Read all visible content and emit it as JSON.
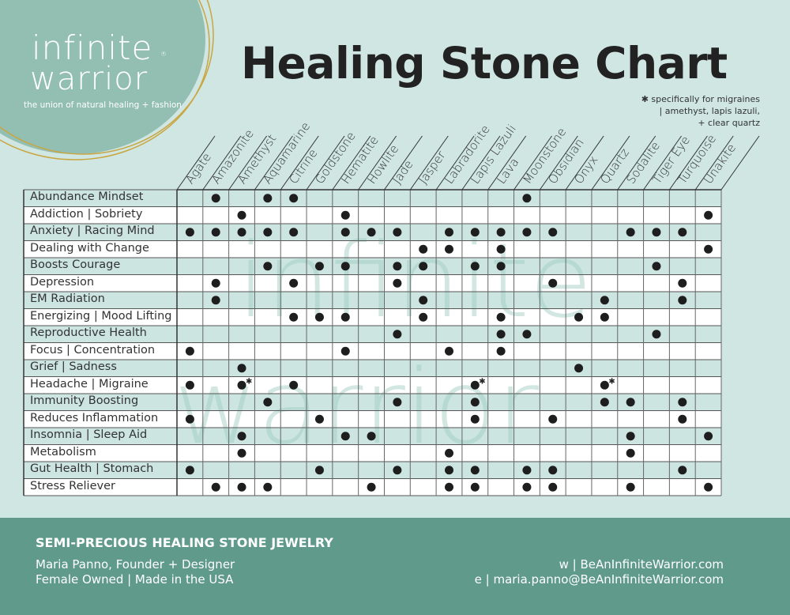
{
  "brand": {
    "logo_line1": "infinite",
    "logo_line2": "warrior",
    "registered": "®",
    "tagline": "the union of natural healing + fashion"
  },
  "title": "Healing Stone Chart",
  "note": {
    "line1": "✱ specifically for migraines",
    "line2": "| amethyst, lapis lazuli,",
    "line3": "+ clear quartz"
  },
  "colors": {
    "background": "#cfe6e3",
    "row_shade": "#cce5e1",
    "logo_circle": "#93bfb3",
    "footer": "#5f9a8b",
    "dot": "#1e1e1e",
    "gold": "#c9a640"
  },
  "chart_data": {
    "type": "table",
    "columns": [
      "Agate",
      "Amazonite",
      "Amethyst",
      "Aquamarine",
      "Citrine",
      "Goldstone",
      "Hematite",
      "Howlite",
      "Jade",
      "Jasper",
      "Labradorite",
      "Lapis Lazuli",
      "Lava",
      "Moonstone",
      "Obsidian",
      "Onyx",
      "Quartz",
      "Sodalite",
      "Tiger Eye",
      "Turquoise",
      "Unakite"
    ],
    "rows": [
      {
        "label": "Abundance Mindset",
        "stones": [
          "Amazonite",
          "Aquamarine",
          "Citrine",
          "Moonstone"
        ]
      },
      {
        "label": "Addiction | Sobriety",
        "stones": [
          "Amethyst",
          "Hematite",
          "Unakite"
        ]
      },
      {
        "label": "Anxiety | Racing Mind",
        "stones": [
          "Agate",
          "Amazonite",
          "Amethyst",
          "Aquamarine",
          "Citrine",
          "Hematite",
          "Howlite",
          "Jade",
          "Labradorite",
          "Lapis Lazuli",
          "Lava",
          "Moonstone",
          "Obsidian",
          "Sodalite",
          "Tiger Eye",
          "Turquoise"
        ]
      },
      {
        "label": "Dealing with Change",
        "stones": [
          "Jasper",
          "Labradorite",
          "Lava",
          "Unakite"
        ]
      },
      {
        "label": "Boosts Courage",
        "stones": [
          "Aquamarine",
          "Goldstone",
          "Hematite",
          "Jade",
          "Jasper",
          "Lapis Lazuli",
          "Lava",
          "Tiger Eye"
        ]
      },
      {
        "label": "Depression",
        "stones": [
          "Amazonite",
          "Citrine",
          "Jade",
          "Obsidian",
          "Turquoise"
        ]
      },
      {
        "label": "EM Radiation",
        "stones": [
          "Amazonite",
          "Jasper",
          "Quartz",
          "Turquoise"
        ]
      },
      {
        "label": "Energizing | Mood Lifting",
        "stones": [
          "Citrine",
          "Goldstone",
          "Hematite",
          "Jasper",
          "Lava",
          "Onyx",
          "Quartz"
        ]
      },
      {
        "label": "Reproductive Health",
        "stones": [
          "Jade",
          "Lava",
          "Moonstone",
          "Tiger Eye"
        ]
      },
      {
        "label": "Focus | Concentration",
        "stones": [
          "Agate",
          "Hematite",
          "Labradorite",
          "Lava"
        ]
      },
      {
        "label": "Grief | Sadness",
        "stones": [
          "Amethyst",
          "Onyx"
        ]
      },
      {
        "label": "Headache | Migraine",
        "stones": [
          "Agate",
          "Amethyst",
          "Citrine",
          "Lapis Lazuli",
          "Quartz"
        ],
        "starred": [
          "Amethyst",
          "Lapis Lazuli",
          "Quartz"
        ]
      },
      {
        "label": "Immunity Boosting",
        "stones": [
          "Aquamarine",
          "Jade",
          "Lapis Lazuli",
          "Quartz",
          "Sodalite",
          "Turquoise"
        ]
      },
      {
        "label": "Reduces Inflammation",
        "stones": [
          "Agate",
          "Goldstone",
          "Lapis Lazuli",
          "Obsidian",
          "Turquoise"
        ]
      },
      {
        "label": "Insomnia | Sleep Aid",
        "stones": [
          "Amethyst",
          "Hematite",
          "Howlite",
          "Sodalite",
          "Unakite"
        ]
      },
      {
        "label": "Metabolism",
        "stones": [
          "Amethyst",
          "Labradorite",
          "Sodalite"
        ]
      },
      {
        "label": "Gut Health | Stomach",
        "stones": [
          "Agate",
          "Goldstone",
          "Jade",
          "Labradorite",
          "Lapis Lazuli",
          "Moonstone",
          "Obsidian",
          "Turquoise"
        ]
      },
      {
        "label": "Stress Reliever",
        "stones": [
          "Amazonite",
          "Amethyst",
          "Aquamarine",
          "Howlite",
          "Labradorite",
          "Lapis Lazuli",
          "Moonstone",
          "Obsidian",
          "Sodalite",
          "Unakite"
        ]
      }
    ],
    "star_marker": "✱"
  },
  "footer": {
    "heading": "SEMI-PRECIOUS HEALING STONE JEWELRY",
    "founder": "Maria Panno, Founder + Designer",
    "tagline": "Female Owned | Made in the USA",
    "website": "w | BeAnInfiniteWarrior.com",
    "email": "e | maria.panno@BeAnInfiniteWarrior.com"
  }
}
